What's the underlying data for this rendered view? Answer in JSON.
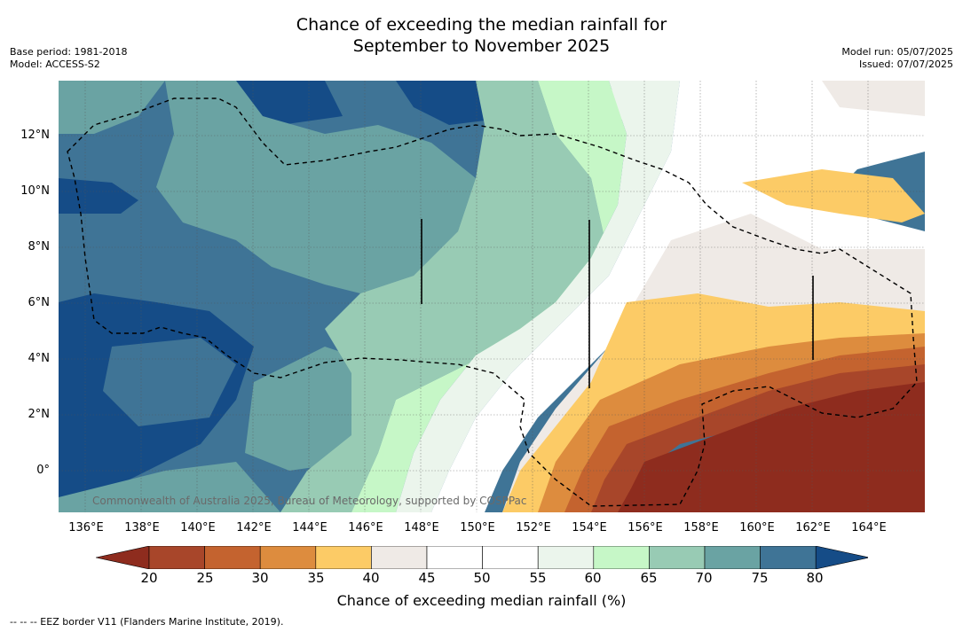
{
  "header": {
    "title_line1": "Chance of exceeding the median rainfall for",
    "title_line2": "September to November 2025",
    "base_period": "Base period: 1981-2018",
    "model": "Model: ACCESS-S2",
    "model_run": "Model run: 05/07/2025",
    "issued": "Issued: 07/07/2025"
  },
  "map": {
    "lat_labels": [
      "12°N",
      "10°N",
      "8°N",
      "6°N",
      "4°N",
      "2°N",
      "0°"
    ],
    "lon_labels": [
      "136°E",
      "138°E",
      "140°E",
      "142°E",
      "144°E",
      "146°E",
      "148°E",
      "150°E",
      "152°E",
      "154°E",
      "156°E",
      "158°E",
      "160°E",
      "162°E",
      "164°E"
    ],
    "copyright": "Commonwealth of Australia 2025, Bureau of Meteorology, supported by COSPPac"
  },
  "colorbar": {
    "label": "Chance of exceeding median rainfall (%)",
    "ticks": [
      "20",
      "25",
      "30",
      "35",
      "40",
      "45",
      "50",
      "55",
      "60",
      "65",
      "70",
      "75",
      "80"
    ],
    "colors": [
      "#8e2c1e",
      "#a8462a",
      "#c4632f",
      "#dd8c3e",
      "#fccb66",
      "#efeae6",
      "#ffffff",
      "#ffffff",
      "#ebf5ec",
      "#c6f7c7",
      "#98cbb4",
      "#6aa3a3",
      "#3f7496",
      "#154c87"
    ]
  },
  "footer": "--  --  -- EEZ border V11 (Flanders Marine Institute, 2019)."
}
